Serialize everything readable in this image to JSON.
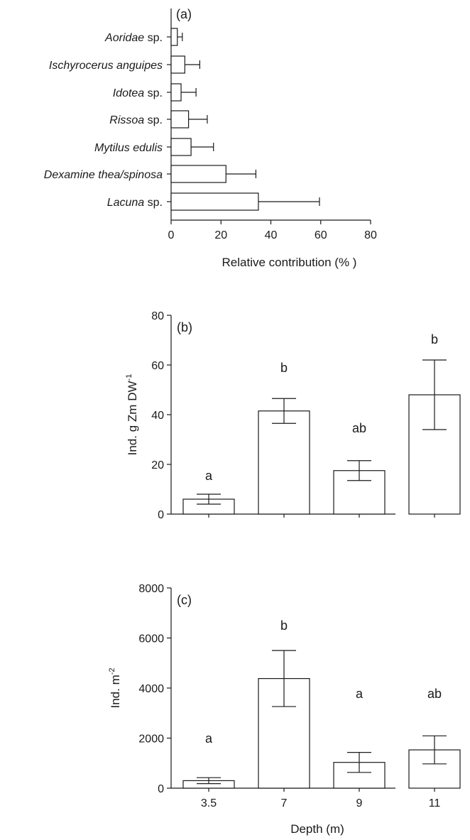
{
  "chart_data": [
    {
      "type": "bar",
      "orientation": "horizontal",
      "panel_label": "(a)",
      "categories": [
        {
          "name": "Aoridae",
          "suffix": " sp."
        },
        {
          "name": "Ischyrocerus anguipes",
          "suffix": ""
        },
        {
          "name": "Idotea",
          "suffix": " sp."
        },
        {
          "name": "Rissoa",
          "suffix": " sp."
        },
        {
          "name": "Mytilus edulis",
          "suffix": ""
        },
        {
          "name": "Dexamine thea/spinosa",
          "suffix": ""
        },
        {
          "name": "Lacuna",
          "suffix": " sp."
        }
      ],
      "values": [
        2.5,
        5.5,
        4,
        7,
        8,
        22,
        35
      ],
      "errors": [
        2,
        6,
        6,
        7.5,
        9,
        12,
        24.5
      ],
      "xlabel": "Relative contribution (% )",
      "xlim": [
        0,
        80
      ],
      "xticks": [
        0,
        20,
        40,
        60,
        80
      ]
    },
    {
      "type": "bar",
      "panel_label": "(b)",
      "categories": [
        "3.5",
        "7",
        "9",
        "11"
      ],
      "values": [
        6,
        41.5,
        17.5,
        48
      ],
      "errors": [
        2,
        5,
        4,
        14
      ],
      "significance": [
        "a",
        "b",
        "ab",
        "b"
      ],
      "ylabel": {
        "base": "Ind. g Zm DW",
        "sup": "-1"
      },
      "ylim": [
        0,
        80
      ],
      "yticks": [
        0,
        20,
        40,
        60,
        80
      ]
    },
    {
      "type": "bar",
      "panel_label": "(c)",
      "categories": [
        "3.5",
        "7",
        "9",
        "11"
      ],
      "values": [
        300,
        4380,
        1030,
        1530
      ],
      "errors": [
        120,
        1120,
        400,
        560
      ],
      "significance": [
        "a",
        "b",
        "a",
        "ab"
      ],
      "ylabel": {
        "base": "Ind. m",
        "sup": "-2"
      },
      "ylim": [
        0,
        8000
      ],
      "yticks": [
        0,
        2000,
        4000,
        6000,
        8000
      ],
      "xlabel": "Depth (m)"
    }
  ]
}
